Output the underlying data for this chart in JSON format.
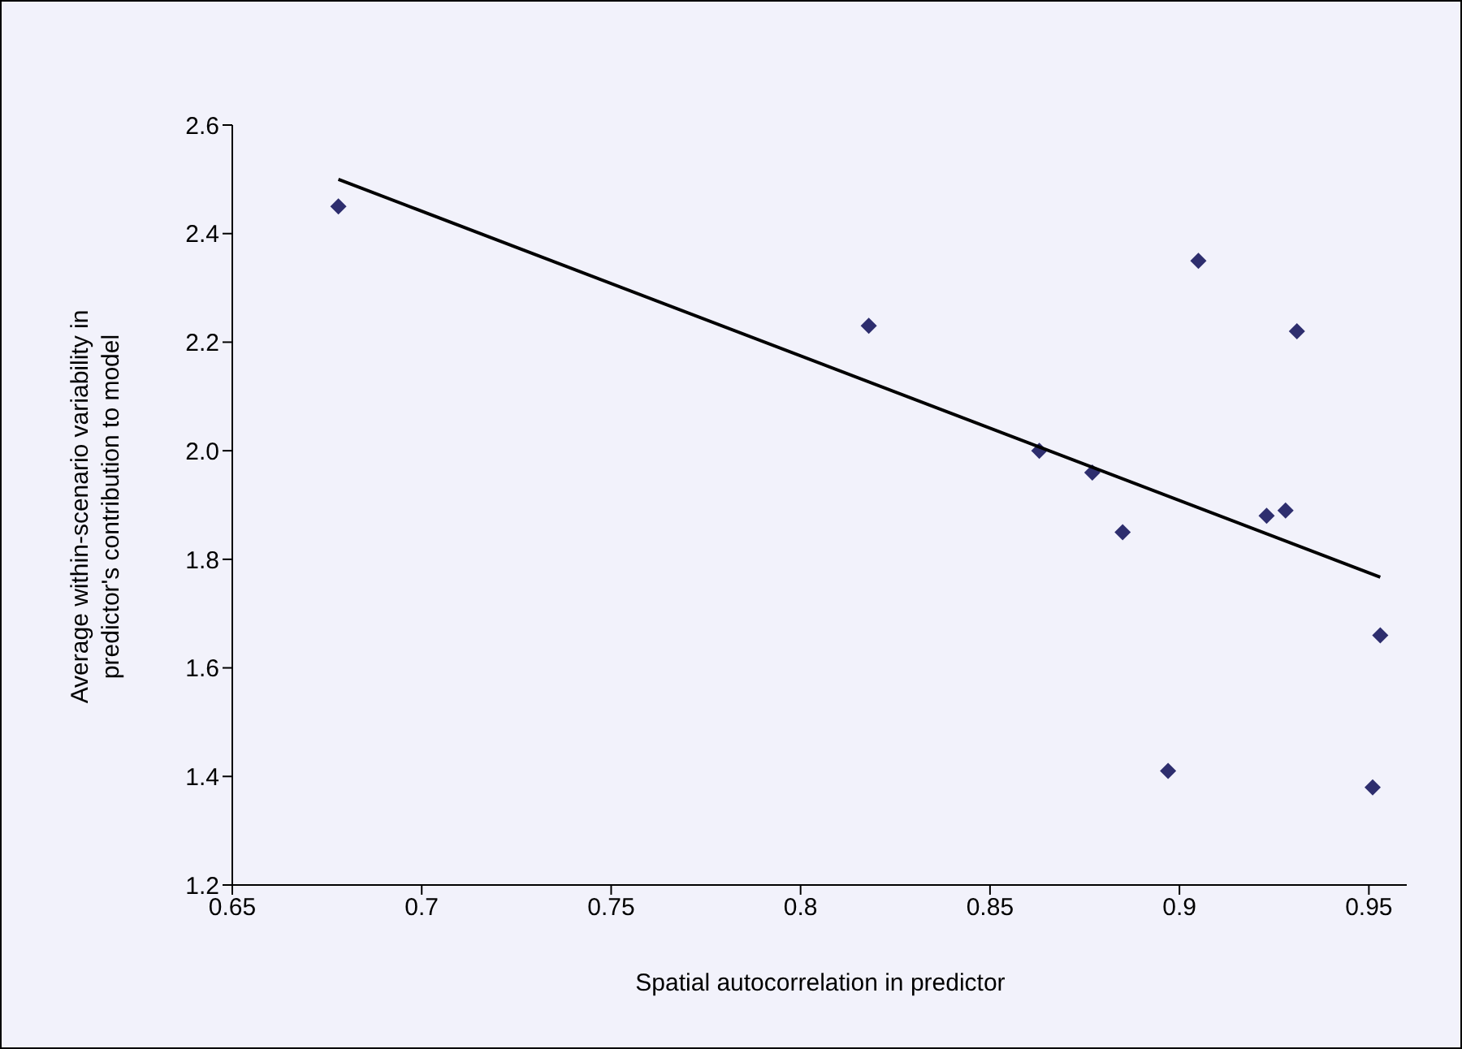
{
  "chart_data": {
    "type": "scatter",
    "xlabel": "Spatial autocorrelation in predictor",
    "ylabel": "Average within-scenario variability in predictor's contribution to model",
    "xlim": [
      0.65,
      0.96
    ],
    "xticks": [
      {
        "value": 0.65,
        "label": "0.65"
      },
      {
        "value": 0.7,
        "label": "0.7"
      },
      {
        "value": 0.75,
        "label": "0.75"
      },
      {
        "value": 0.8,
        "label": "0.8"
      },
      {
        "value": 0.85,
        "label": "0.85"
      },
      {
        "value": 0.9,
        "label": "0.9"
      },
      {
        "value": 0.95,
        "label": "0.95"
      }
    ],
    "ylim": [
      1.2,
      2.6
    ],
    "yticks": [
      {
        "value": 1.2,
        "label": "1.2"
      },
      {
        "value": 1.4,
        "label": "1.4"
      },
      {
        "value": 1.6,
        "label": "1.6"
      },
      {
        "value": 1.8,
        "label": "1.8"
      },
      {
        "value": 2.0,
        "label": "2.0"
      },
      {
        "value": 2.2,
        "label": "2.2"
      },
      {
        "value": 2.4,
        "label": "2.4"
      },
      {
        "value": 2.6,
        "label": "2.6"
      }
    ],
    "grid": false,
    "marker": "diamond",
    "series": [
      {
        "type": "scatter",
        "color": "#2e2e6e",
        "x": [
          0.678,
          0.818,
          0.863,
          0.877,
          0.885,
          0.905,
          0.931,
          0.923,
          0.928,
          0.953,
          0.897,
          0.951
        ],
        "values": [
          2.45,
          2.23,
          2.0,
          1.96,
          1.85,
          2.35,
          2.22,
          1.88,
          1.89,
          1.66,
          1.41,
          1.38
        ]
      },
      {
        "type": "line",
        "color": "#000000",
        "marker": "none",
        "x": [
          0.678,
          0.953
        ],
        "values": [
          2.5,
          1.767
        ]
      }
    ]
  }
}
